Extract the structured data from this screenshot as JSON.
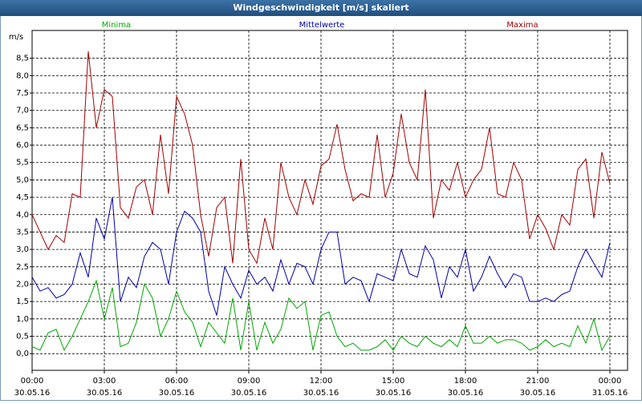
{
  "chart_data": {
    "type": "line",
    "title": "Windgeschwindigkeit [m/s] skaliert",
    "y_label": "m/s",
    "grid": true,
    "xlim": [
      0,
      1484
    ],
    "ylim": [
      -0.48,
      9.3
    ],
    "xticks": [
      {
        "value": 0,
        "label": "00:00",
        "date": "30.05.16"
      },
      {
        "value": 180,
        "label": "03:00",
        "date": "30.05.16"
      },
      {
        "value": 360,
        "label": "06:00",
        "date": "30.05.16"
      },
      {
        "value": 540,
        "label": "09:00",
        "date": "30.05.16"
      },
      {
        "value": 720,
        "label": "12:00",
        "date": "30.05.16"
      },
      {
        "value": 900,
        "label": "15:00",
        "date": "30.05.16"
      },
      {
        "value": 1080,
        "label": "18:00",
        "date": "30.05.16"
      },
      {
        "value": 1260,
        "label": "21:00",
        "date": "30.05.16"
      },
      {
        "value": 1440,
        "label": "00:00",
        "date": "31.05.16"
      }
    ],
    "yticks": [
      {
        "value": 0,
        "label": "0,0"
      },
      {
        "value": 0.5,
        "label": "0,5"
      },
      {
        "value": 1,
        "label": "1,0"
      },
      {
        "value": 1.5,
        "label": "1,5"
      },
      {
        "value": 2,
        "label": "2,0"
      },
      {
        "value": 2.5,
        "label": "2,5"
      },
      {
        "value": 3,
        "label": "3,0"
      },
      {
        "value": 3.5,
        "label": "3,5"
      },
      {
        "value": 4,
        "label": "4,0"
      },
      {
        "value": 4.5,
        "label": "4,5"
      },
      {
        "value": 5,
        "label": "5,0"
      },
      {
        "value": 5.5,
        "label": "5,5"
      },
      {
        "value": 6,
        "label": "6,0"
      },
      {
        "value": 6.5,
        "label": "6,5"
      },
      {
        "value": 7,
        "label": "7,0"
      },
      {
        "value": 7.5,
        "label": "7,5"
      },
      {
        "value": 8,
        "label": "8,0"
      },
      {
        "value": 8.5,
        "label": "8,5"
      }
    ],
    "x": [
      0,
      20,
      40,
      60,
      80,
      100,
      120,
      140,
      160,
      180,
      200,
      220,
      240,
      260,
      280,
      300,
      320,
      340,
      360,
      380,
      400,
      420,
      440,
      460,
      480,
      500,
      520,
      540,
      560,
      580,
      600,
      620,
      640,
      660,
      680,
      700,
      720,
      740,
      760,
      780,
      800,
      820,
      840,
      860,
      880,
      900,
      920,
      940,
      960,
      980,
      1000,
      1020,
      1040,
      1060,
      1080,
      1100,
      1120,
      1140,
      1160,
      1180,
      1200,
      1220,
      1240,
      1260,
      1280,
      1300,
      1320,
      1340,
      1360,
      1380,
      1400,
      1420,
      1440
    ],
    "series": [
      {
        "name": "Minima",
        "color": "#00a800",
        "values": [
          0.2,
          0.1,
          0.6,
          0.7,
          0.1,
          0.5,
          1.0,
          1.5,
          2.1,
          1.0,
          1.9,
          0.2,
          0.3,
          0.9,
          2.0,
          1.6,
          0.5,
          1.0,
          1.8,
          1.2,
          0.9,
          0.2,
          0.9,
          0.6,
          0.3,
          1.6,
          0.1,
          1.5,
          0.1,
          0.9,
          0.3,
          0.7,
          1.6,
          1.3,
          1.5,
          0.1,
          1.1,
          1.2,
          0.5,
          0.2,
          0.3,
          0.1,
          0.1,
          0.2,
          0.4,
          0.1,
          0.5,
          0.3,
          0.2,
          0.5,
          0.3,
          0.2,
          0.4,
          0.2,
          0.8,
          0.3,
          0.3,
          0.5,
          0.3,
          0.4,
          0.4,
          0.3,
          0.1,
          0.2,
          0.4,
          0.2,
          0.3,
          0.2,
          0.8,
          0.3,
          1.0,
          0.1,
          0.5
        ]
      },
      {
        "name": "Mittelwerte",
        "color": "#0000aa",
        "values": [
          2.2,
          1.8,
          1.9,
          1.6,
          1.7,
          2.0,
          2.9,
          2.2,
          3.9,
          3.3,
          4.5,
          1.5,
          2.2,
          1.9,
          2.8,
          3.2,
          3.0,
          2.0,
          3.5,
          4.1,
          3.9,
          3.5,
          1.8,
          1.1,
          2.5,
          2.0,
          1.6,
          2.4,
          2.0,
          2.2,
          1.8,
          2.7,
          2.0,
          2.6,
          2.5,
          2.0,
          3.0,
          3.5,
          3.5,
          2.0,
          2.2,
          2.1,
          1.5,
          2.3,
          2.2,
          2.1,
          3.0,
          2.3,
          2.2,
          3.1,
          2.7,
          1.6,
          2.5,
          2.2,
          3.0,
          1.8,
          2.2,
          2.8,
          2.3,
          1.9,
          2.3,
          2.2,
          1.5,
          1.5,
          1.6,
          1.5,
          1.7,
          1.8,
          2.5,
          3.0,
          2.6,
          2.2,
          3.2
        ]
      },
      {
        "name": "Maxima",
        "color": "#a00000",
        "values": [
          4.0,
          3.5,
          3.0,
          3.4,
          3.2,
          4.6,
          4.5,
          8.7,
          6.5,
          7.6,
          7.4,
          4.2,
          3.9,
          4.8,
          5.0,
          4.0,
          6.3,
          4.6,
          7.4,
          6.9,
          6.0,
          4.0,
          2.8,
          4.2,
          4.5,
          2.6,
          5.6,
          3.0,
          2.6,
          3.9,
          3.0,
          5.5,
          4.5,
          4.0,
          5.0,
          4.3,
          5.4,
          5.6,
          6.6,
          5.3,
          4.4,
          4.6,
          4.5,
          6.3,
          4.5,
          5.2,
          6.9,
          5.5,
          5.0,
          7.6,
          3.9,
          5.0,
          4.7,
          5.5,
          4.5,
          5.0,
          5.3,
          6.5,
          4.6,
          4.5,
          5.5,
          5.0,
          3.3,
          4.0,
          3.6,
          3.0,
          4.0,
          3.7,
          5.3,
          5.6,
          3.9,
          5.8,
          4.9
        ]
      }
    ]
  }
}
